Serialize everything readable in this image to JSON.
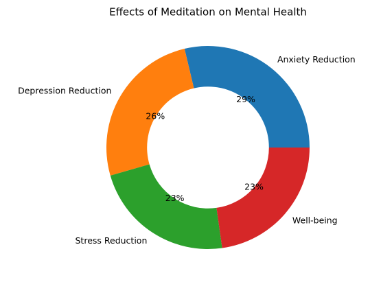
{
  "chart_data": {
    "type": "donut",
    "title": "Effects of Meditation on Mental Health",
    "categories": [
      "Anxiety Reduction",
      "Depression Reduction",
      "Stress Reduction",
      "Well-being"
    ],
    "values": [
      29,
      26,
      23,
      23
    ],
    "value_labels": [
      "29%",
      "26%",
      "23%",
      "23%"
    ],
    "colors": [
      "#1f77b4",
      "#ff7f0e",
      "#2ca02c",
      "#d62728"
    ]
  }
}
